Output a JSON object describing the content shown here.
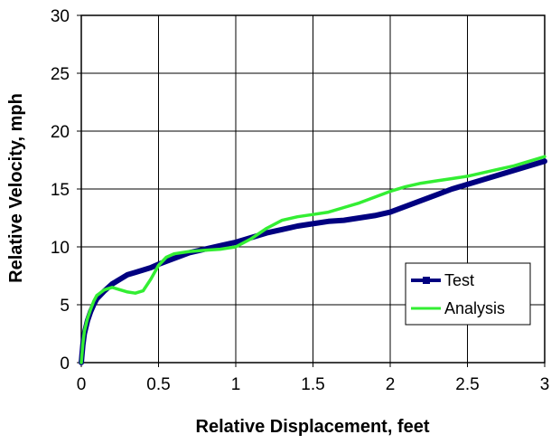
{
  "chart_data": {
    "type": "line",
    "title": "",
    "xlabel": "Relative Displacement, feet",
    "ylabel": "Relative Velocity, mph",
    "xlim": [
      0,
      3
    ],
    "ylim": [
      0,
      30
    ],
    "xticks": [
      "0",
      "0.5",
      "1",
      "1.5",
      "2",
      "2.5",
      "3"
    ],
    "yticks": [
      "0",
      "5",
      "10",
      "15",
      "20",
      "25",
      "30"
    ],
    "grid": true,
    "legend_position": "right",
    "series": [
      {
        "name": "Test",
        "color": "#000080",
        "points": [
          [
            0.0,
            0.0
          ],
          [
            0.01,
            1.5
          ],
          [
            0.02,
            2.5
          ],
          [
            0.04,
            3.6
          ],
          [
            0.06,
            4.4
          ],
          [
            0.08,
            5.0
          ],
          [
            0.1,
            5.5
          ],
          [
            0.15,
            6.2
          ],
          [
            0.2,
            6.8
          ],
          [
            0.25,
            7.2
          ],
          [
            0.3,
            7.6
          ],
          [
            0.35,
            7.8
          ],
          [
            0.4,
            8.0
          ],
          [
            0.45,
            8.2
          ],
          [
            0.5,
            8.5
          ],
          [
            0.6,
            9.0
          ],
          [
            0.7,
            9.5
          ],
          [
            0.8,
            9.8
          ],
          [
            0.9,
            10.1
          ],
          [
            1.0,
            10.4
          ],
          [
            1.1,
            10.8
          ],
          [
            1.2,
            11.2
          ],
          [
            1.3,
            11.5
          ],
          [
            1.4,
            11.8
          ],
          [
            1.5,
            12.0
          ],
          [
            1.6,
            12.2
          ],
          [
            1.7,
            12.3
          ],
          [
            1.8,
            12.5
          ],
          [
            1.9,
            12.7
          ],
          [
            2.0,
            13.0
          ],
          [
            2.1,
            13.5
          ],
          [
            2.2,
            14.0
          ],
          [
            2.3,
            14.5
          ],
          [
            2.4,
            15.0
          ],
          [
            2.5,
            15.4
          ],
          [
            2.6,
            15.8
          ],
          [
            2.7,
            16.2
          ],
          [
            2.8,
            16.6
          ],
          [
            2.9,
            17.0
          ],
          [
            3.0,
            17.4
          ]
        ]
      },
      {
        "name": "Analysis",
        "color": "#33ee33",
        "points": [
          [
            0.0,
            0.0
          ],
          [
            0.01,
            1.6
          ],
          [
            0.02,
            2.7
          ],
          [
            0.04,
            3.8
          ],
          [
            0.06,
            4.6
          ],
          [
            0.08,
            5.3
          ],
          [
            0.1,
            5.8
          ],
          [
            0.15,
            6.3
          ],
          [
            0.2,
            6.5
          ],
          [
            0.25,
            6.3
          ],
          [
            0.3,
            6.1
          ],
          [
            0.35,
            6.0
          ],
          [
            0.4,
            6.2
          ],
          [
            0.45,
            7.2
          ],
          [
            0.5,
            8.4
          ],
          [
            0.55,
            9.1
          ],
          [
            0.6,
            9.4
          ],
          [
            0.7,
            9.6
          ],
          [
            0.8,
            9.7
          ],
          [
            0.9,
            9.8
          ],
          [
            1.0,
            10.0
          ],
          [
            1.1,
            10.7
          ],
          [
            1.2,
            11.6
          ],
          [
            1.3,
            12.3
          ],
          [
            1.4,
            12.6
          ],
          [
            1.5,
            12.8
          ],
          [
            1.6,
            13.0
          ],
          [
            1.7,
            13.4
          ],
          [
            1.8,
            13.8
          ],
          [
            1.9,
            14.3
          ],
          [
            2.0,
            14.8
          ],
          [
            2.1,
            15.2
          ],
          [
            2.2,
            15.5
          ],
          [
            2.3,
            15.7
          ],
          [
            2.4,
            15.9
          ],
          [
            2.5,
            16.1
          ],
          [
            2.6,
            16.4
          ],
          [
            2.7,
            16.7
          ],
          [
            2.8,
            17.0
          ],
          [
            2.9,
            17.4
          ],
          [
            3.0,
            17.8
          ]
        ]
      }
    ]
  }
}
